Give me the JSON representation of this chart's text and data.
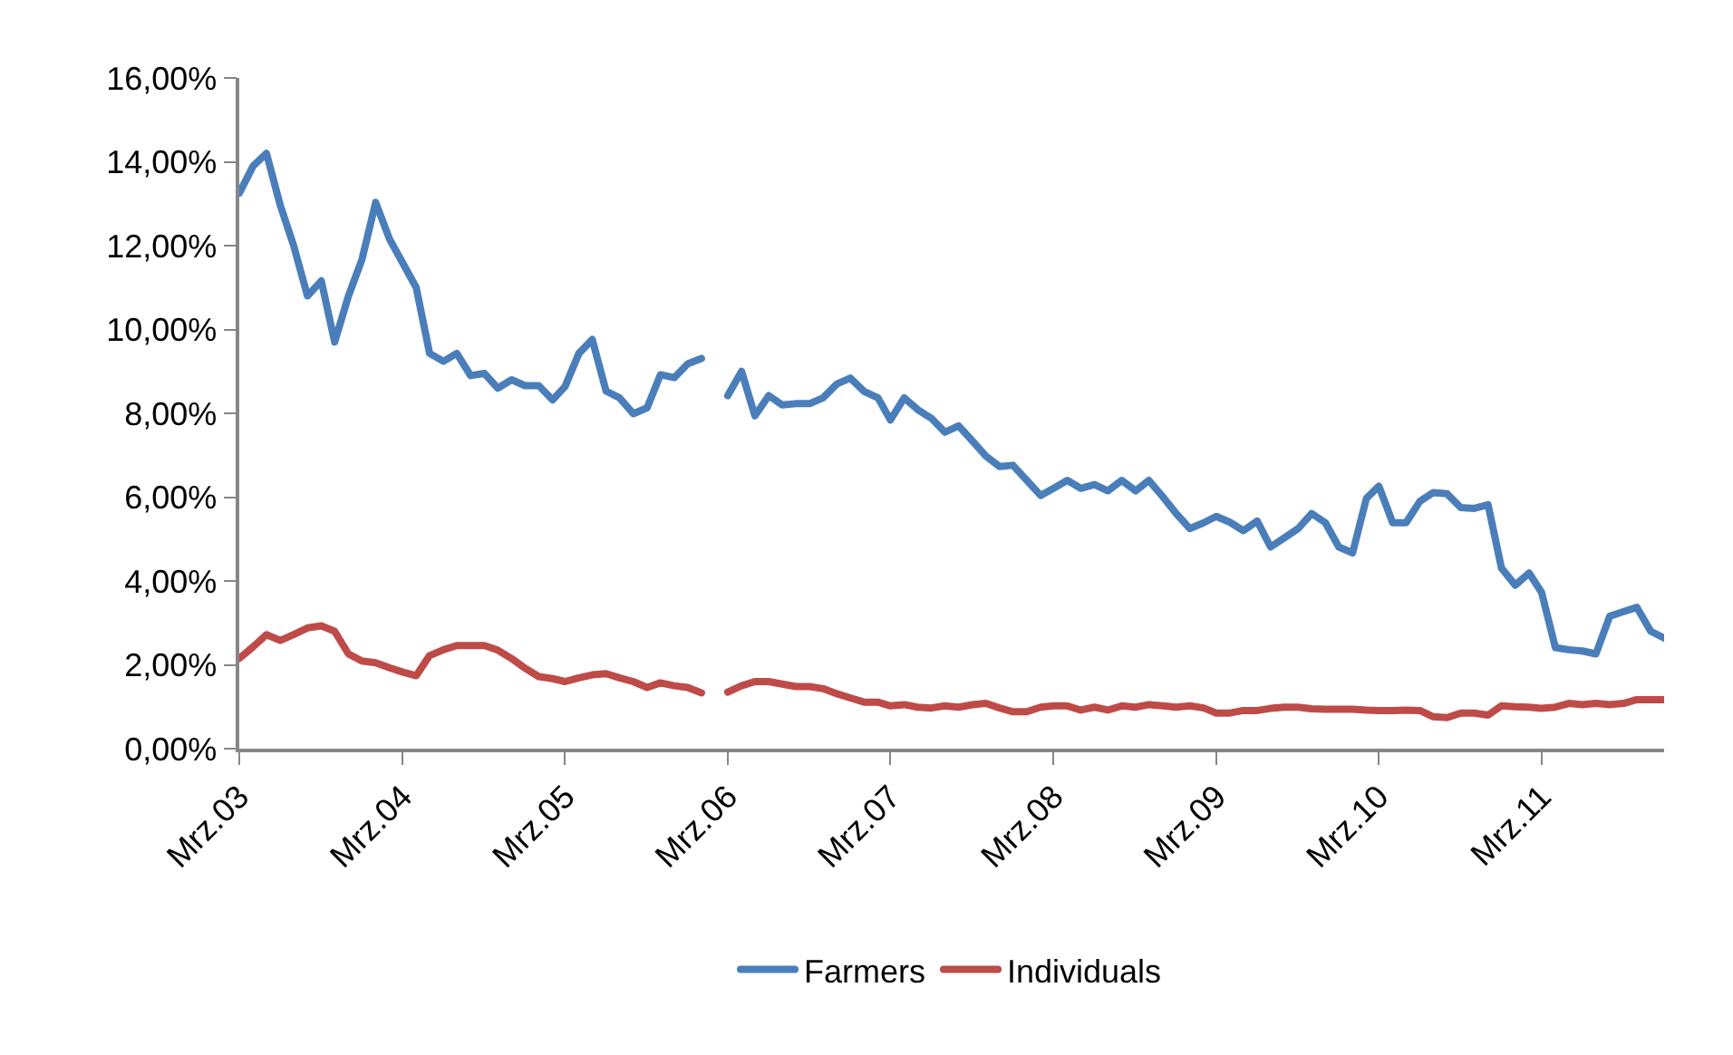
{
  "chart_data": {
    "type": "line",
    "x": [
      "2003-03",
      "2003-04",
      "2003-05",
      "2003-06",
      "2003-07",
      "2003-08",
      "2003-09",
      "2003-10",
      "2003-11",
      "2003-12",
      "2004-01",
      "2004-02",
      "2004-03",
      "2004-04",
      "2004-05",
      "2004-06",
      "2004-07",
      "2004-08",
      "2004-09",
      "2004-10",
      "2004-11",
      "2004-12",
      "2005-01",
      "2005-02",
      "2005-03",
      "2005-04",
      "2005-05",
      "2005-06",
      "2005-07",
      "2005-08",
      "2005-09",
      "2005-10",
      "2005-11",
      "2005-12",
      "2006-01",
      "2006-02",
      "2006-03",
      "2006-04",
      "2006-05",
      "2006-06",
      "2006-07",
      "2006-08",
      "2006-09",
      "2006-10",
      "2006-11",
      "2006-12",
      "2007-01",
      "2007-02",
      "2007-03",
      "2007-04",
      "2007-05",
      "2007-06",
      "2007-07",
      "2007-08",
      "2007-09",
      "2007-10",
      "2007-11",
      "2007-12",
      "2008-01",
      "2008-02",
      "2008-03",
      "2008-04",
      "2008-05",
      "2008-06",
      "2008-07",
      "2008-08",
      "2008-09",
      "2008-10",
      "2008-11",
      "2008-12",
      "2009-01",
      "2009-02",
      "2009-03",
      "2009-04",
      "2009-05",
      "2009-06",
      "2009-07",
      "2009-08",
      "2009-09",
      "2009-10",
      "2009-11",
      "2009-12",
      "2010-01",
      "2010-02",
      "2010-03",
      "2010-04",
      "2010-05",
      "2010-06",
      "2010-07",
      "2010-08",
      "2010-09",
      "2010-10",
      "2010-11",
      "2010-12",
      "2011-01",
      "2011-02",
      "2011-03",
      "2011-04",
      "2011-05",
      "2011-06",
      "2011-07",
      "2011-08",
      "2011-09",
      "2011-10",
      "2011-11",
      "2011-12"
    ],
    "series": [
      {
        "name": "Farmers",
        "color": "#4a7ebb",
        "values": [
          13.25,
          13.9,
          14.2,
          12.96,
          12.0,
          10.8,
          11.16,
          9.7,
          10.8,
          11.66,
          13.03,
          12.16,
          11.6,
          11.0,
          9.43,
          9.24,
          9.43,
          8.9,
          8.95,
          8.6,
          8.8,
          8.66,
          8.66,
          8.32,
          8.64,
          9.43,
          9.76,
          8.53,
          8.37,
          7.99,
          8.13,
          8.92,
          8.85,
          9.18,
          9.31,
          null,
          8.42,
          9.0,
          7.94,
          8.42,
          8.2,
          8.23,
          8.23,
          8.37,
          8.7,
          8.84,
          8.52,
          8.37,
          7.84,
          8.37,
          8.09,
          7.88,
          7.55,
          7.7,
          7.34,
          6.98,
          6.73,
          6.76,
          6.4,
          6.04,
          6.21,
          6.4,
          6.21,
          6.3,
          6.15,
          6.4,
          6.15,
          6.4,
          6.01,
          5.61,
          5.25,
          5.39,
          5.54,
          5.4,
          5.2,
          5.43,
          4.81,
          5.03,
          5.25,
          5.61,
          5.39,
          4.81,
          4.67,
          5.97,
          6.26,
          5.39,
          5.39,
          5.9,
          6.11,
          6.08,
          5.75,
          5.73,
          5.82,
          4.31,
          3.9,
          4.19,
          3.73,
          2.41,
          2.36,
          2.33,
          2.26,
          3.16,
          3.27,
          3.37,
          2.8,
          2.64
        ]
      },
      {
        "name": "Individuals",
        "color": "#be4b48",
        "values": [
          2.15,
          2.43,
          2.72,
          2.58,
          2.72,
          2.88,
          2.93,
          2.8,
          2.26,
          2.09,
          2.05,
          1.93,
          1.83,
          1.74,
          2.22,
          2.36,
          2.46,
          2.46,
          2.46,
          2.35,
          2.15,
          1.92,
          1.72,
          1.67,
          1.6,
          1.69,
          1.76,
          1.79,
          1.69,
          1.6,
          1.46,
          1.57,
          1.5,
          1.46,
          1.33,
          null,
          1.35,
          1.5,
          1.6,
          1.6,
          1.54,
          1.48,
          1.48,
          1.43,
          1.31,
          1.21,
          1.11,
          1.11,
          1.02,
          1.05,
          0.99,
          0.97,
          1.02,
          0.99,
          1.05,
          1.08,
          0.97,
          0.88,
          0.88,
          0.99,
          1.02,
          1.02,
          0.92,
          0.99,
          0.92,
          1.02,
          0.99,
          1.05,
          1.02,
          0.99,
          1.02,
          0.97,
          0.85,
          0.85,
          0.91,
          0.91,
          0.96,
          0.99,
          0.99,
          0.95,
          0.94,
          0.94,
          0.94,
          0.92,
          0.91,
          0.91,
          0.92,
          0.91,
          0.76,
          0.74,
          0.85,
          0.85,
          0.8,
          1.02,
          1.0,
          0.99,
          0.96,
          0.99,
          1.08,
          1.05,
          1.08,
          1.05,
          1.08,
          1.17,
          1.17,
          1.17
        ]
      }
    ],
    "xlim": [
      "2003-03",
      "2011-12"
    ],
    "xticks": [
      {
        "value": "2003-03",
        "label": "Mrz.03"
      },
      {
        "value": "2004-03",
        "label": "Mrz.04"
      },
      {
        "value": "2005-03",
        "label": "Mrz.05"
      },
      {
        "value": "2006-03",
        "label": "Mrz.06"
      },
      {
        "value": "2007-03",
        "label": "Mrz.07"
      },
      {
        "value": "2008-03",
        "label": "Mrz.08"
      },
      {
        "value": "2009-03",
        "label": "Mrz.09"
      },
      {
        "value": "2010-03",
        "label": "Mrz.10"
      },
      {
        "value": "2011-03",
        "label": "Mrz.11"
      }
    ],
    "ylim": [
      0,
      16
    ],
    "yticks": [
      {
        "value": 0,
        "label": "0,00%"
      },
      {
        "value": 2,
        "label": "2,00%"
      },
      {
        "value": 4,
        "label": "4,00%"
      },
      {
        "value": 6,
        "label": "6,00%"
      },
      {
        "value": 8,
        "label": "8,00%"
      },
      {
        "value": 10,
        "label": "10,00%"
      },
      {
        "value": 12,
        "label": "12,00%"
      },
      {
        "value": 14,
        "label": "14,00%"
      },
      {
        "value": 16,
        "label": "16,00%"
      }
    ],
    "grid": false,
    "legend": "bottom",
    "marker": "none",
    "line_style": "solid"
  }
}
